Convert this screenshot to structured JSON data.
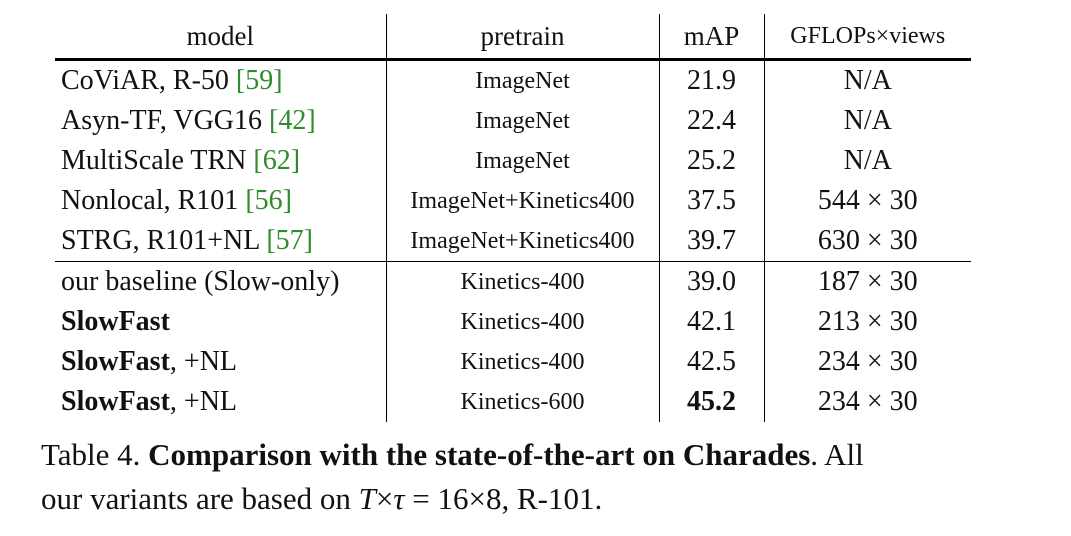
{
  "table": {
    "headers": {
      "model": "model",
      "pretrain": "pretrain",
      "map": "mAP",
      "gflops": "GFLOPs×views"
    },
    "rows": [
      {
        "model": "CoViAR, R-50",
        "ref": "[59]",
        "model_bold": "",
        "model_rest": "",
        "pretrain": "ImageNet",
        "map": "21.9",
        "gflops": "N/A"
      },
      {
        "model": "Asyn-TF, VGG16",
        "ref": "[42]",
        "model_bold": "",
        "model_rest": "",
        "pretrain": "ImageNet",
        "map": "22.4",
        "gflops": "N/A"
      },
      {
        "model": "MultiScale TRN",
        "ref": "[62]",
        "model_bold": "",
        "model_rest": "",
        "pretrain": "ImageNet",
        "map": "25.2",
        "gflops": "N/A"
      },
      {
        "model": "Nonlocal, R101",
        "ref": "[56]",
        "model_bold": "",
        "model_rest": "",
        "pretrain": "ImageNet+Kinetics400",
        "map": "37.5",
        "gflops": "544 × 30"
      },
      {
        "model": "STRG, R101+NL",
        "ref": "[57]",
        "model_bold": "",
        "model_rest": "",
        "pretrain": "ImageNet+Kinetics400",
        "map": "39.7",
        "gflops": "630 × 30"
      },
      {
        "model": "our baseline (Slow-only)",
        "ref": "",
        "model_bold": "",
        "model_rest": "",
        "pretrain": "Kinetics-400",
        "map": "39.0",
        "gflops": "187 × 30"
      },
      {
        "model": "",
        "ref": "",
        "model_bold": "SlowFast",
        "model_rest": "",
        "pretrain": "Kinetics-400",
        "map": "42.1",
        "gflops": "213 × 30"
      },
      {
        "model": "",
        "ref": "",
        "model_bold": "SlowFast",
        "model_rest": ", +NL",
        "pretrain": "Kinetics-400",
        "map": "42.5",
        "gflops": "234 × 30"
      },
      {
        "model": "",
        "ref": "",
        "model_bold": "SlowFast",
        "model_rest": ", +NL",
        "pretrain": "Kinetics-600",
        "map": "45.2",
        "gflops": "234 × 30"
      }
    ]
  },
  "caption": {
    "label": "Table 4.",
    "title": "Comparison with the state-of-the-art on Charades",
    "text1": ". All",
    "text2": "our variants are based on ",
    "math_T": "T",
    "math_times": "×",
    "math_tau": "τ",
    "math_eq": " = 16×8",
    "text3": ", R-101."
  }
}
